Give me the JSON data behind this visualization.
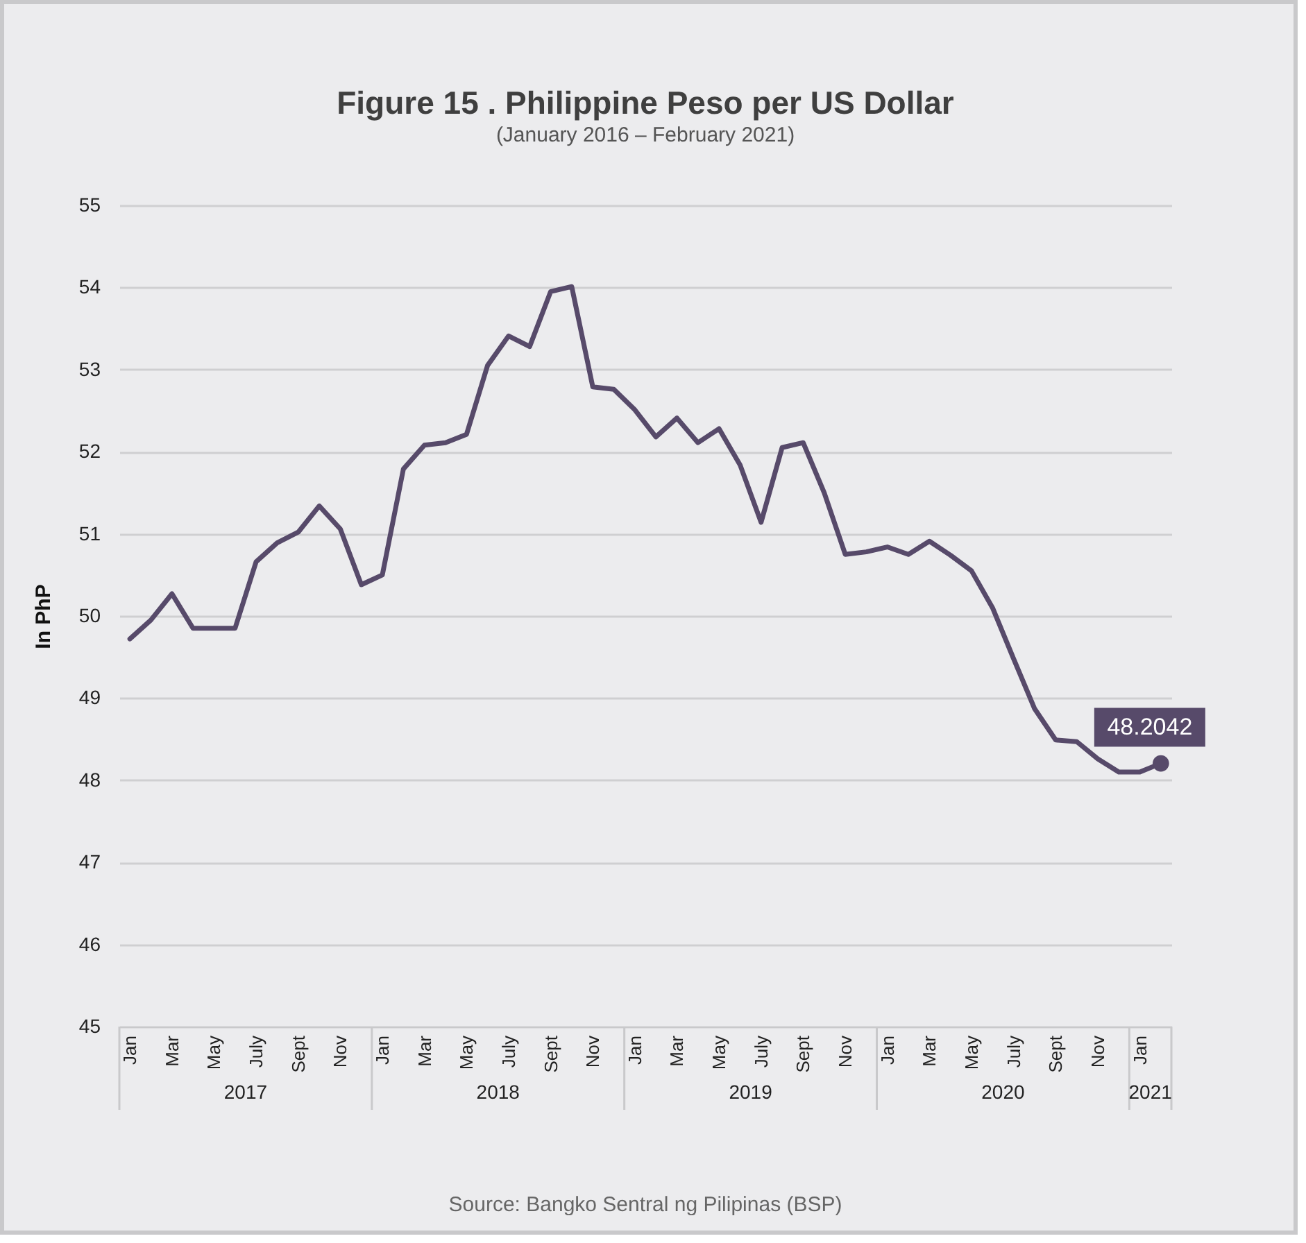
{
  "chart_data": {
    "type": "line",
    "title": "Figure 15 . Philippine Peso per US Dollar",
    "subtitle": "(January 2016 – February 2021)",
    "ylabel": "In PhP",
    "categories": [
      "Jan",
      null,
      "Mar",
      null,
      "May",
      null,
      "July",
      null,
      "Sept",
      null,
      "Nov",
      null,
      "Jan",
      null,
      "Mar",
      null,
      "May",
      null,
      "July",
      null,
      "Sept",
      null,
      "Nov",
      null,
      "Jan",
      null,
      "Mar",
      null,
      "May",
      null,
      "July",
      null,
      "Sept",
      null,
      "Nov",
      null,
      "Jan",
      null,
      "Mar",
      null,
      "May",
      null,
      "July",
      null,
      "Sept",
      null,
      "Nov",
      null,
      "Jan",
      null
    ],
    "series": [
      {
        "color": "#574a6a",
        "values": [
          49.72,
          49.95,
          50.27,
          49.85,
          49.85,
          49.85,
          50.66,
          50.89,
          51.02,
          51.34,
          51.06,
          50.38,
          50.5,
          51.79,
          52.08,
          52.11,
          52.21,
          53.05,
          53.41,
          53.28,
          53.95,
          54.01,
          52.79,
          52.76,
          52.51,
          52.18,
          52.41,
          52.11,
          52.28,
          51.84,
          51.14,
          52.05,
          52.11,
          51.5,
          50.75,
          50.78,
          50.84,
          50.75,
          50.91,
          50.74,
          50.55,
          50.1,
          49.48,
          48.87,
          48.49,
          48.47,
          48.26,
          48.1,
          48.1,
          48.2042
        ],
        "value_labels": [
          null,
          null,
          null,
          null,
          null,
          null,
          null,
          null,
          null,
          null,
          null,
          null,
          null,
          null,
          null,
          null,
          null,
          null,
          null,
          null,
          null,
          null,
          null,
          null,
          null,
          null,
          null,
          null,
          null,
          null,
          null,
          null,
          null,
          null,
          null,
          null,
          null,
          null,
          null,
          null,
          null,
          null,
          null,
          null,
          null,
          null,
          null,
          null,
          null,
          "48.2042"
        ]
      }
    ],
    "ylim": [
      45,
      55
    ],
    "yticks": [
      45,
      46,
      47,
      48,
      49,
      50,
      51,
      52,
      53,
      54,
      55
    ],
    "grid": "y",
    "legend": false,
    "annotations": [
      "2017",
      "2018",
      "2019",
      "2020",
      "2021",
      "Source: Bangko Sentral ng Pilipinas (BSP)"
    ]
  }
}
